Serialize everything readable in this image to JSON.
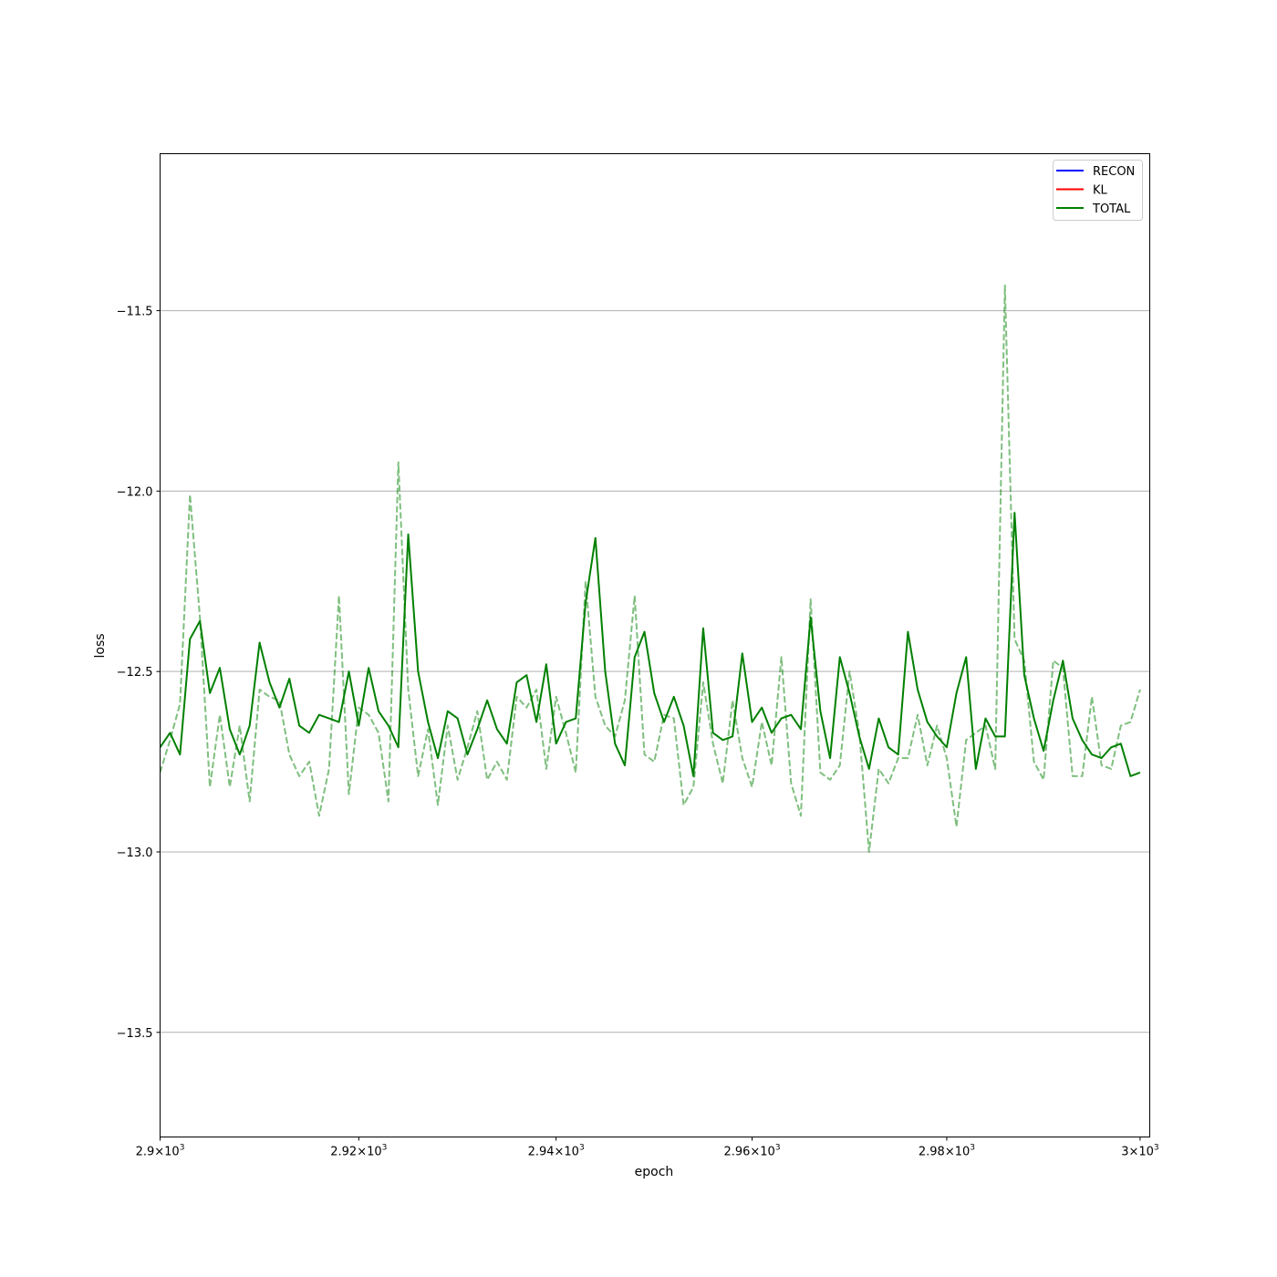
{
  "chart_data": {
    "type": "line",
    "title": "",
    "xlabel": "epoch",
    "ylabel": "loss",
    "x_scale": "log",
    "xlim": [
      2900,
      3001
    ],
    "ylim": [
      -13.79,
      -11.065
    ],
    "grid": "horizontal",
    "legend_position": "top-right",
    "x_ticks": [
      {
        "value": 2900,
        "mant": "2.9",
        "exp": "3"
      },
      {
        "value": 2920,
        "mant": "2.92",
        "exp": "3"
      },
      {
        "value": 2940,
        "mant": "2.94",
        "exp": "3"
      },
      {
        "value": 2960,
        "mant": "2.96",
        "exp": "3"
      },
      {
        "value": 2980,
        "mant": "2.98",
        "exp": "3"
      },
      {
        "value": 3000,
        "mant": "3",
        "exp": "3"
      }
    ],
    "y_ticks": [
      {
        "value": -11.5,
        "label": "−11.5"
      },
      {
        "value": -12.0,
        "label": "−12.0"
      },
      {
        "value": -12.5,
        "label": "−12.5"
      },
      {
        "value": -13.0,
        "label": "−13.0"
      },
      {
        "value": -13.5,
        "label": "−13.5"
      }
    ],
    "legend": [
      {
        "name": "RECON",
        "color": "#0000ff"
      },
      {
        "name": "KL",
        "color": "#ff0000"
      },
      {
        "name": "TOTAL",
        "color": "#008000"
      }
    ],
    "x_start": 2900,
    "series": [
      {
        "name": "TOTAL",
        "color": "#008000",
        "style": "solid",
        "values": [
          -12.71,
          -12.67,
          -12.73,
          -12.41,
          -12.36,
          -12.56,
          -12.49,
          -12.66,
          -12.73,
          -12.65,
          -12.42,
          -12.53,
          -12.6,
          -12.52,
          -12.65,
          -12.67,
          -12.62,
          -12.63,
          -12.64,
          -12.5,
          -12.65,
          -12.49,
          -12.61,
          -12.65,
          -12.71,
          -12.12,
          -12.5,
          -12.64,
          -12.74,
          -12.61,
          -12.63,
          -12.73,
          -12.66,
          -12.58,
          -12.66,
          -12.7,
          -12.53,
          -12.51,
          -12.64,
          -12.48,
          -12.7,
          -12.64,
          -12.63,
          -12.31,
          -12.13,
          -12.5,
          -12.7,
          -12.76,
          -12.46,
          -12.39,
          -12.56,
          -12.64,
          -12.57,
          -12.65,
          -12.79,
          -12.38,
          -12.67,
          -12.69,
          -12.68,
          -12.45,
          -12.64,
          -12.6,
          -12.67,
          -12.63,
          -12.62,
          -12.66,
          -12.35,
          -12.61,
          -12.74,
          -12.46,
          -12.56,
          -12.68,
          -12.77,
          -12.63,
          -12.71,
          -12.73,
          -12.39,
          -12.55,
          -12.64,
          -12.68,
          -12.71,
          -12.56,
          -12.46,
          -12.77,
          -12.63,
          -12.68,
          -12.68,
          -12.06,
          -12.51,
          -12.63,
          -12.72,
          -12.58,
          -12.47,
          -12.63,
          -12.69,
          -12.73,
          -12.74,
          -12.71,
          -12.7,
          -12.79,
          -12.78
        ]
      },
      {
        "name": "",
        "color": "#008000",
        "style": "dashed",
        "opacity": 0.5,
        "values": [
          -12.78,
          -12.69,
          -12.59,
          -12.01,
          -12.35,
          -12.82,
          -12.62,
          -12.82,
          -12.65,
          -12.86,
          -12.55,
          -12.57,
          -12.58,
          -12.73,
          -12.79,
          -12.75,
          -12.9,
          -12.77,
          -12.29,
          -12.84,
          -12.6,
          -12.62,
          -12.67,
          -12.86,
          -11.92,
          -12.55,
          -12.79,
          -12.66,
          -12.87,
          -12.65,
          -12.8,
          -12.71,
          -12.61,
          -12.8,
          -12.75,
          -12.8,
          -12.57,
          -12.6,
          -12.55,
          -12.77,
          -12.57,
          -12.67,
          -12.78,
          -12.25,
          -12.57,
          -12.65,
          -12.68,
          -12.58,
          -12.29,
          -12.73,
          -12.75,
          -12.62,
          -12.63,
          -12.87,
          -12.82,
          -12.53,
          -12.7,
          -12.81,
          -12.58,
          -12.74,
          -12.82,
          -12.64,
          -12.76,
          -12.46,
          -12.81,
          -12.9,
          -12.3,
          -12.78,
          -12.8,
          -12.76,
          -12.5,
          -12.67,
          -13.0,
          -12.77,
          -12.81,
          -12.74,
          -12.74,
          -12.62,
          -12.76,
          -12.65,
          -12.74,
          -12.93,
          -12.69,
          -12.67,
          -12.65,
          -12.77,
          -11.43,
          -12.41,
          -12.47,
          -12.75,
          -12.8,
          -12.47,
          -12.49,
          -12.79,
          -12.79,
          -12.57,
          -12.76,
          -12.77,
          -12.65,
          -12.64,
          -12.55
        ]
      }
    ]
  }
}
